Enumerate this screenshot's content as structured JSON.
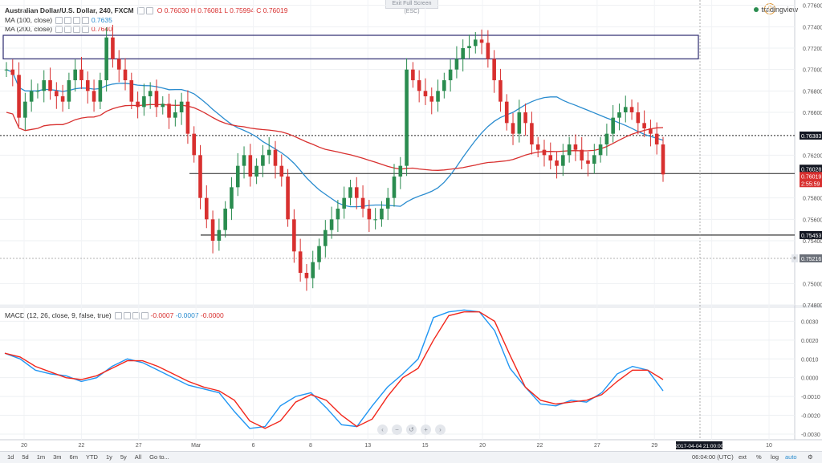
{
  "topbar": {
    "exit_label": "Exit Full Screen (ESC)"
  },
  "legend": {
    "title": "Australian Dollar/U.S. Dollar, 240, FXCM",
    "ohlc": "O 0.76030 H 0.76081 L 0.75994 C 0.76019",
    "ma100_label": "MA (100, close)",
    "ma100_value": "0.7635",
    "ma200_label": "MA (200, close)",
    "ma200_value": "0.7640",
    "macd_label": "MACD (12, 26, close, 9, false, true)",
    "macd_v1": "-0.0007",
    "macd_v2": "-0.0007",
    "macd_v3": "-0.0000"
  },
  "brand": {
    "name": "tradingview",
    "icon": "tradingview-logo-icon"
  },
  "colors": {
    "up": "#2a8c4f",
    "down": "#d8302f",
    "ma100": "#2a8ccf",
    "ma200": "#d8302f",
    "macd_line": "#2196f3",
    "signal_line": "#f2271c"
  },
  "price_axis_labels": [
    "0.77600",
    "0.77400",
    "0.77200",
    "0.77000",
    "0.76800",
    "0.76600",
    "0.76200",
    "0.75800",
    "0.75600",
    "0.75400",
    "0.75000",
    "0.74800"
  ],
  "price_badges": [
    {
      "text": "0.76383",
      "style": "dark"
    },
    {
      "text": "0.76028",
      "style": "dark"
    },
    {
      "text": "0.76019",
      "style": "red"
    },
    {
      "text": "2:55:59",
      "style": "red"
    },
    {
      "text": "0.75453",
      "style": "dark"
    },
    {
      "text": "0.75216",
      "style": "gray"
    }
  ],
  "macd_axis_labels": [
    "0.0030",
    "0.0020",
    "0.0010",
    "0.0000",
    "-0.0010",
    "-0.0020",
    "-0.0030"
  ],
  "time_axis_labels": [
    "20",
    "22",
    "27",
    "Mar",
    "6",
    "8",
    "13",
    "15",
    "20",
    "22",
    "27",
    "29",
    "Apr",
    "10"
  ],
  "time_cursor_label": "2017-04-04 21:00:00",
  "bottombar": {
    "timeframes": [
      "1d",
      "5d",
      "1m",
      "3m",
      "6m",
      "YTD",
      "1y",
      "5y",
      "All",
      "Go to..."
    ],
    "clock": "06:04:00 (UTC)",
    "buttons": [
      "ext",
      "%",
      "log",
      "auto"
    ]
  },
  "chart_data": [
    {
      "type": "candlestick",
      "title": "Australian Dollar/U.S. Dollar, 240, FXCM",
      "ylim": [
        0.748,
        0.7762
      ],
      "grid": true,
      "horizontal_levels": [
        0.76383,
        0.76028,
        0.75453
      ],
      "resistance_zone": [
        0.771,
        0.7732
      ],
      "close_series": [
        0.77,
        0.7695,
        0.7655,
        0.767,
        0.768,
        0.768,
        0.769,
        0.768,
        0.7675,
        0.767,
        0.769,
        0.77,
        0.769,
        0.768,
        0.767,
        0.769,
        0.773,
        0.771,
        0.77,
        0.769,
        0.767,
        0.7665,
        0.7675,
        0.768,
        0.7665,
        0.7668,
        0.7655,
        0.766,
        0.767,
        0.764,
        0.762,
        0.758,
        0.756,
        0.754,
        0.755,
        0.757,
        0.759,
        0.761,
        0.762,
        0.76,
        0.761,
        0.762,
        0.7625,
        0.761,
        0.76,
        0.756,
        0.753,
        0.751,
        0.7505,
        0.752,
        0.7535,
        0.755,
        0.756,
        0.757,
        0.758,
        0.759,
        0.758,
        0.757,
        0.756,
        0.756,
        0.757,
        0.758,
        0.76,
        0.761,
        0.77,
        0.769,
        0.768,
        0.7675,
        0.767,
        0.768,
        0.769,
        0.77,
        0.771,
        0.772,
        0.7722,
        0.7728,
        0.7725,
        0.771,
        0.769,
        0.767,
        0.765,
        0.764,
        0.766,
        0.765,
        0.763,
        0.7625,
        0.762,
        0.7615,
        0.761,
        0.762,
        0.763,
        0.7625,
        0.7615,
        0.7612,
        0.762,
        0.763,
        0.764,
        0.7655,
        0.766,
        0.7665,
        0.766,
        0.765,
        0.7645,
        0.764,
        0.763,
        0.7602
      ]
    },
    {
      "type": "line",
      "title": "MACD (12, 26, close, 9, false, true)",
      "ylim": [
        -0.0033,
        0.0037
      ],
      "series": [
        {
          "name": "MACD",
          "values": [
            0.0013,
            0.001,
            0.0004,
            0.0002,
            0.0001,
            -0.0002,
            0.0,
            0.0006,
            0.001,
            0.0008,
            0.0004,
            0.0,
            -0.0004,
            -0.0006,
            -0.0008,
            -0.0018,
            -0.0027,
            -0.0026,
            -0.0015,
            -0.001,
            -0.0008,
            -0.0016,
            -0.0025,
            -0.0026,
            -0.0015,
            -0.0005,
            0.0002,
            0.001,
            0.0032,
            0.0035,
            0.0036,
            0.0035,
            0.0025,
            0.0005,
            -0.0005,
            -0.0014,
            -0.0015,
            -0.0012,
            -0.0013,
            -0.0008,
            0.0002,
            0.0006,
            0.0004,
            -0.0007
          ]
        },
        {
          "name": "Signal",
          "values": [
            0.0013,
            0.0011,
            0.0006,
            0.0003,
            0.0,
            -0.0001,
            0.0001,
            0.0005,
            0.0009,
            0.0009,
            0.0006,
            0.0002,
            -0.0002,
            -0.0005,
            -0.0007,
            -0.0012,
            -0.0023,
            -0.0027,
            -0.0023,
            -0.0013,
            -0.0009,
            -0.0012,
            -0.002,
            -0.0026,
            -0.0022,
            -0.001,
            0.0,
            0.0005,
            0.002,
            0.0033,
            0.0035,
            0.0035,
            0.003,
            0.0012,
            -0.0005,
            -0.0012,
            -0.0014,
            -0.0013,
            -0.0012,
            -0.0009,
            -0.0002,
            0.0004,
            0.0004,
            -0.0001
          ]
        }
      ]
    }
  ]
}
